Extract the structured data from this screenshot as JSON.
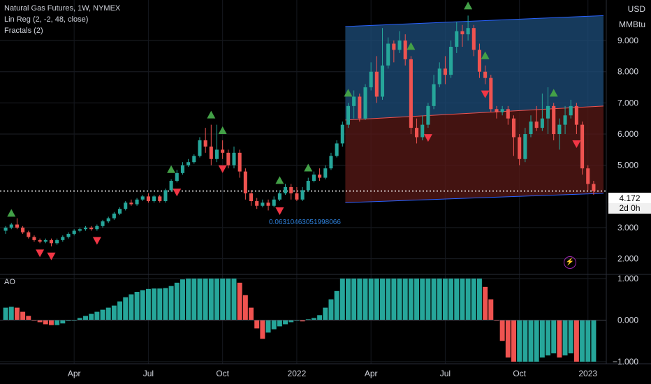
{
  "legend": {
    "symbol_line": "Natural Gas Futures, 1W, NYMEX",
    "indicator_1": "Lin Reg (2, -2, 48, close)",
    "indicator_2": "Fractals (2)"
  },
  "lower_pane": {
    "label": "AO"
  },
  "price_scale": {
    "unit_1": "USD",
    "unit_2": "MMBtu",
    "current_price": "4.172",
    "countdown": "2d 0h"
  },
  "linreg_value": "0.06310463051998066",
  "bolt_icon": "lightning-icon",
  "colors": {
    "up": "#26a69a",
    "down": "#ef5350",
    "fractal_up": "#43a047",
    "fractal_down": "#f23645",
    "channel_upper": "#1e4d7b",
    "channel_lower": "#5a1a17",
    "channel_line": "#2962ff"
  },
  "chart_data": {
    "type": "candlestick",
    "price_axis": {
      "ticks": [
        "9.000",
        "8.000",
        "7.000",
        "6.000",
        "5.000",
        "3.000",
        "2.000"
      ],
      "range": [
        1.5,
        10.3
      ]
    },
    "ao_axis": {
      "ticks": [
        "1.000",
        "0.000",
        "−1.000"
      ],
      "range": [
        -1.05,
        1.1
      ]
    },
    "time_axis": {
      "ticks": [
        "Apr",
        "Jul",
        "Oct",
        "2022",
        "Apr",
        "Jul",
        "Oct",
        "2023"
      ]
    },
    "current_price": 4.172,
    "candles": [
      [
        2.9,
        3.0,
        2.8,
        3.05
      ],
      [
        3.0,
        3.1,
        2.95,
        3.15
      ],
      [
        3.1,
        3.0,
        2.95,
        3.3
      ],
      [
        3.0,
        2.85,
        2.8,
        3.05
      ],
      [
        2.85,
        2.7,
        2.65,
        2.9
      ],
      [
        2.7,
        2.6,
        2.55,
        2.75
      ],
      [
        2.6,
        2.55,
        2.5,
        2.65
      ],
      [
        2.55,
        2.6,
        2.5,
        2.65
      ],
      [
        2.6,
        2.5,
        2.4,
        2.65
      ],
      [
        2.5,
        2.6,
        2.45,
        2.65
      ],
      [
        2.6,
        2.7,
        2.55,
        2.75
      ],
      [
        2.7,
        2.8,
        2.65,
        2.85
      ],
      [
        2.8,
        2.9,
        2.75,
        2.95
      ],
      [
        2.9,
        2.95,
        2.85,
        3.0
      ],
      [
        2.95,
        3.0,
        2.9,
        3.05
      ],
      [
        3.0,
        2.95,
        2.9,
        3.05
      ],
      [
        2.95,
        3.05,
        2.9,
        3.1
      ],
      [
        3.05,
        3.2,
        3.0,
        3.25
      ],
      [
        3.2,
        3.3,
        3.15,
        3.35
      ],
      [
        3.3,
        3.45,
        3.25,
        3.5
      ],
      [
        3.45,
        3.6,
        3.4,
        3.65
      ],
      [
        3.6,
        3.8,
        3.55,
        3.85
      ],
      [
        3.8,
        3.75,
        3.7,
        3.9
      ],
      [
        3.75,
        3.9,
        3.7,
        3.95
      ],
      [
        3.9,
        4.0,
        3.85,
        4.05
      ],
      [
        4.0,
        3.85,
        3.8,
        4.1
      ],
      [
        3.85,
        4.0,
        3.8,
        4.05
      ],
      [
        4.0,
        3.85,
        3.8,
        4.05
      ],
      [
        3.85,
        4.2,
        3.8,
        4.25
      ],
      [
        4.2,
        4.5,
        4.15,
        4.55
      ],
      [
        4.5,
        4.75,
        4.45,
        4.85
      ],
      [
        4.75,
        5.0,
        4.7,
        5.1
      ],
      [
        5.0,
        5.1,
        4.95,
        5.2
      ],
      [
        5.1,
        5.3,
        5.05,
        5.35
      ],
      [
        5.3,
        5.8,
        5.25,
        5.9
      ],
      [
        5.8,
        5.6,
        5.4,
        6.2
      ],
      [
        5.6,
        5.2,
        5.0,
        6.3
      ],
      [
        5.2,
        5.5,
        5.1,
        6.3
      ],
      [
        5.5,
        5.4,
        5.2,
        5.8
      ],
      [
        5.4,
        5.0,
        4.9,
        5.5
      ],
      [
        5.0,
        5.4,
        4.9,
        5.6
      ],
      [
        5.4,
        4.8,
        4.6,
        5.5
      ],
      [
        4.8,
        4.1,
        3.9,
        4.9
      ],
      [
        4.1,
        3.85,
        3.7,
        4.2
      ],
      [
        3.85,
        3.7,
        3.6,
        3.95
      ],
      [
        3.7,
        3.8,
        3.65,
        3.9
      ],
      [
        3.8,
        3.7,
        3.55,
        3.9
      ],
      [
        3.7,
        3.9,
        3.65,
        4.0
      ],
      [
        3.9,
        4.1,
        3.85,
        4.2
      ],
      [
        4.1,
        4.3,
        4.05,
        4.4
      ],
      [
        4.3,
        4.1,
        3.9,
        4.4
      ],
      [
        4.1,
        3.9,
        3.85,
        4.3
      ],
      [
        3.9,
        4.2,
        3.85,
        4.3
      ],
      [
        4.2,
        4.5,
        4.15,
        4.6
      ],
      [
        4.5,
        4.7,
        4.45,
        4.8
      ],
      [
        4.7,
        4.6,
        4.5,
        4.9
      ],
      [
        4.6,
        4.9,
        4.55,
        5.0
      ],
      [
        4.9,
        5.3,
        4.85,
        5.4
      ],
      [
        5.3,
        5.7,
        5.25,
        5.8
      ],
      [
        5.7,
        6.3,
        5.6,
        6.4
      ],
      [
        6.3,
        6.9,
        6.2,
        7.0
      ],
      [
        6.9,
        7.2,
        6.5,
        7.4
      ],
      [
        7.2,
        6.5,
        6.4,
        7.3
      ],
      [
        6.5,
        7.5,
        6.45,
        7.6
      ],
      [
        7.5,
        8.0,
        7.4,
        8.3
      ],
      [
        8.0,
        7.2,
        7.0,
        8.5
      ],
      [
        7.2,
        8.2,
        7.1,
        9.4
      ],
      [
        8.2,
        8.9,
        8.1,
        9.1
      ],
      [
        8.9,
        8.7,
        8.3,
        9.0
      ],
      [
        8.7,
        9.0,
        8.6,
        9.3
      ],
      [
        9.0,
        8.4,
        8.2,
        9.2
      ],
      [
        8.4,
        6.2,
        6.0,
        8.5
      ],
      [
        6.2,
        5.9,
        5.7,
        6.5
      ],
      [
        5.9,
        6.3,
        5.8,
        6.6
      ],
      [
        6.3,
        6.9,
        6.2,
        7.0
      ],
      [
        6.9,
        7.6,
        6.8,
        7.9
      ],
      [
        7.6,
        8.1,
        7.5,
        8.3
      ],
      [
        8.1,
        7.9,
        7.6,
        8.5
      ],
      [
        7.9,
        8.8,
        7.8,
        9.0
      ],
      [
        8.8,
        9.3,
        8.6,
        9.6
      ],
      [
        9.3,
        9.2,
        8.8,
        9.5
      ],
      [
        9.2,
        9.4,
        9.0,
        9.8
      ],
      [
        9.4,
        8.7,
        8.5,
        9.5
      ],
      [
        8.7,
        8.0,
        7.8,
        8.9
      ],
      [
        8.0,
        7.8,
        7.6,
        8.2
      ],
      [
        7.8,
        6.8,
        6.7,
        7.9
      ],
      [
        6.8,
        6.7,
        6.5,
        6.9
      ],
      [
        6.7,
        6.8,
        6.6,
        6.9
      ],
      [
        6.8,
        6.5,
        6.3,
        6.9
      ],
      [
        6.5,
        5.9,
        5.3,
        6.6
      ],
      [
        5.9,
        5.2,
        5.0,
        6.0
      ],
      [
        5.2,
        6.0,
        5.1,
        6.2
      ],
      [
        6.0,
        6.4,
        5.9,
        6.6
      ],
      [
        6.4,
        6.2,
        6.1,
        6.9
      ],
      [
        6.2,
        6.5,
        6.1,
        7.3
      ],
      [
        6.5,
        6.9,
        6.0,
        7.5
      ],
      [
        6.9,
        6.0,
        5.8,
        7.0
      ],
      [
        6.0,
        6.3,
        5.5,
        6.5
      ],
      [
        6.3,
        6.6,
        6.0,
        6.9
      ],
      [
        6.6,
        6.9,
        6.5,
        7.1
      ],
      [
        6.9,
        6.3,
        6.0,
        7.0
      ],
      [
        6.3,
        4.9,
        4.7,
        6.4
      ],
      [
        4.9,
        4.4,
        4.2,
        5.0
      ],
      [
        4.4,
        4.172,
        4.05,
        4.5
      ]
    ],
    "ao": [
      0.3,
      0.32,
      0.3,
      0.2,
      0.1,
      0.0,
      -0.05,
      -0.1,
      -0.12,
      -0.12,
      -0.08,
      -0.02,
      0.0,
      0.05,
      0.1,
      0.15,
      0.2,
      0.25,
      0.3,
      0.35,
      0.45,
      0.55,
      0.62,
      0.68,
      0.72,
      0.75,
      0.76,
      0.76,
      0.77,
      0.82,
      0.9,
      0.98,
      1.0,
      1.0,
      1.0,
      1.0,
      1.0,
      1.0,
      1.0,
      1.0,
      1.0,
      0.9,
      0.6,
      0.3,
      -0.2,
      -0.45,
      -0.3,
      -0.22,
      -0.15,
      -0.1,
      -0.05,
      0.0,
      -0.03,
      0.02,
      0.05,
      0.12,
      0.3,
      0.5,
      0.7,
      1.0,
      1.0,
      1.0,
      1.0,
      1.0,
      1.0,
      1.0,
      1.0,
      1.0,
      1.0,
      1.0,
      1.0,
      1.0,
      1.0,
      1.0,
      1.0,
      1.0,
      1.0,
      1.0,
      1.0,
      1.0,
      1.0,
      1.0,
      1.0,
      1.0,
      0.8,
      0.5,
      0.0,
      -0.5,
      -0.9,
      -1.0,
      -1.0,
      -1.0,
      -1.0,
      -1.0,
      -0.9,
      -0.85,
      -0.8,
      -0.9,
      -0.85,
      -0.8,
      -1.0,
      -1.0,
      -1.0,
      -1.0
    ],
    "fractals_up_index": [
      1,
      29,
      36,
      38,
      48,
      53,
      60,
      71,
      81,
      84,
      96
    ],
    "fractals_down_index": [
      6,
      8,
      16,
      30,
      38,
      48,
      74,
      84,
      100
    ]
  }
}
